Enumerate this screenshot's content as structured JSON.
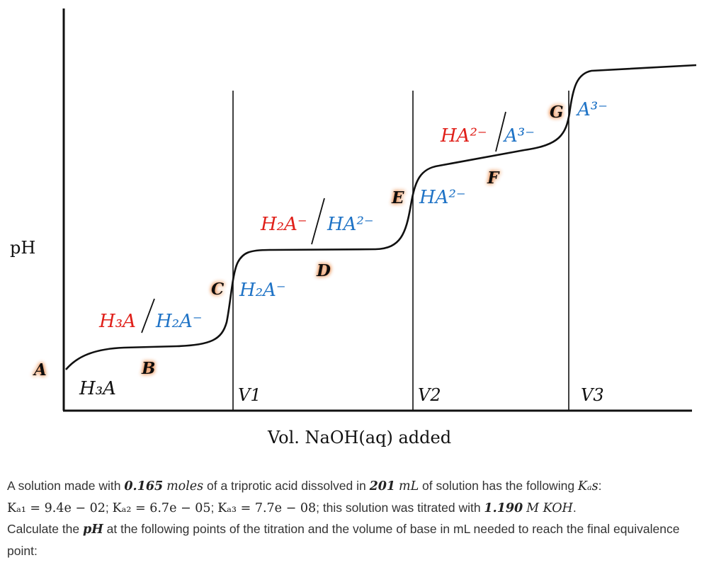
{
  "chart_data": {
    "type": "line",
    "title": "",
    "xlabel": "Vol. NaOH(aq) added",
    "ylabel": "pH",
    "grid": false,
    "equivalence_lines": [
      "V1",
      "V2",
      "V3"
    ],
    "points": [
      {
        "label": "A",
        "at": "start"
      },
      {
        "label": "B",
        "at": "first half-equivalence"
      },
      {
        "label": "C",
        "at": "V1"
      },
      {
        "label": "D",
        "at": "second half-equivalence"
      },
      {
        "label": "E",
        "at": "V2"
      },
      {
        "label": "F",
        "at": "third half-equivalence"
      },
      {
        "label": "G",
        "at": "V3"
      }
    ],
    "species": {
      "h3a": "H₃A",
      "h3a_h2a_top": "H₃A",
      "h3a_h2a_bottom": "H₂A⁻",
      "h2a_region": "H₂A⁻",
      "h2a_ha_top": "H₂A⁻",
      "h2a_ha_bottom": "HA²⁻",
      "ha_region": "HA²⁻",
      "ha_a_top": "HA²⁻",
      "ha_a_bottom": "A³⁻",
      "a_region": "A³⁻"
    },
    "colors": {
      "acid": "#e0201a",
      "base": "#1f73c6",
      "label_glow": "#e8894a"
    }
  },
  "problem": {
    "t1": "A solution made with ",
    "moles": "0.165",
    "moles_unit": "moles",
    "t2": " of a triprotic acid dissolved in ",
    "volume": "201",
    "volume_unit": "mL",
    "t3": " of solution has the following ",
    "kas": "Kₐs",
    "t4": ":",
    "ka1": "Kₐ₁ = 9.4e − 02",
    "ka2": "Kₐ₂ = 6.7e − 05",
    "ka3": "Kₐ₃ = 7.7e − 08",
    "t5": "; this solution was titrated with ",
    "conc": "1.190",
    "conc_unit": "M KOH",
    "t6": ".",
    "t7": "Calculate the ",
    "ph": "pH",
    "t8": " at the following points of the titration and the volume of base in mL needed to reach the final equivalence point:"
  }
}
